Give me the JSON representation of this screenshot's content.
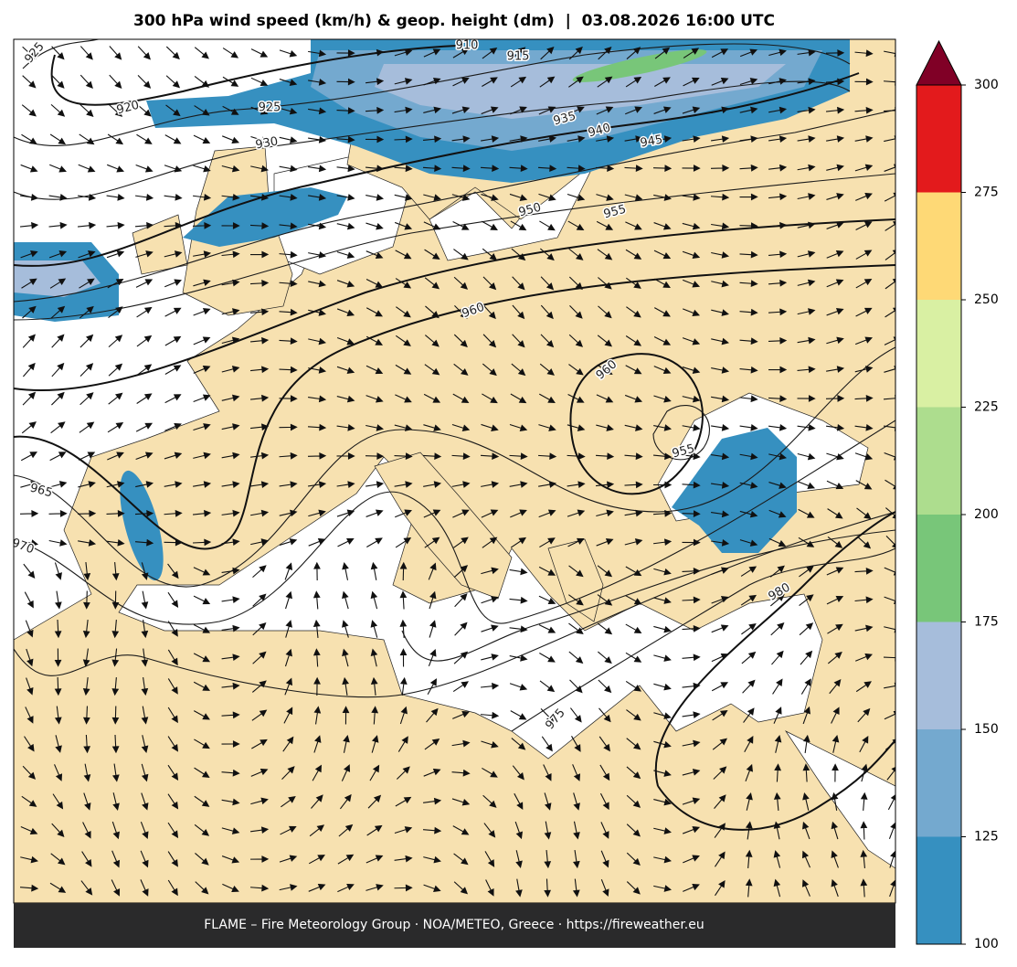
{
  "header": {
    "title": "300 hPa wind speed (km/h) & geop. height (dm)  |  03.08.2026 16:00 UTC"
  },
  "colorbar": {
    "ticks": [
      100,
      125,
      150,
      175,
      200,
      225,
      250,
      275,
      300
    ],
    "colors": [
      "#3690c0",
      "#74a9cf",
      "#a6bddb",
      "#78c679",
      "#addd8e",
      "#d9f0a3",
      "#fed976",
      "#e31a1c"
    ],
    "extend_color": "#800026"
  },
  "map": {
    "contour_labels": [
      "925",
      "920",
      "925",
      "930",
      "910",
      "915",
      "935",
      "940",
      "945",
      "950",
      "955",
      "960",
      "960",
      "955",
      "965",
      "970",
      "975",
      "980"
    ]
  },
  "footer": {
    "text": "FLAME – Fire Meteorology Group · NOA/METEO, Greece · https://fireweather.eu"
  }
}
